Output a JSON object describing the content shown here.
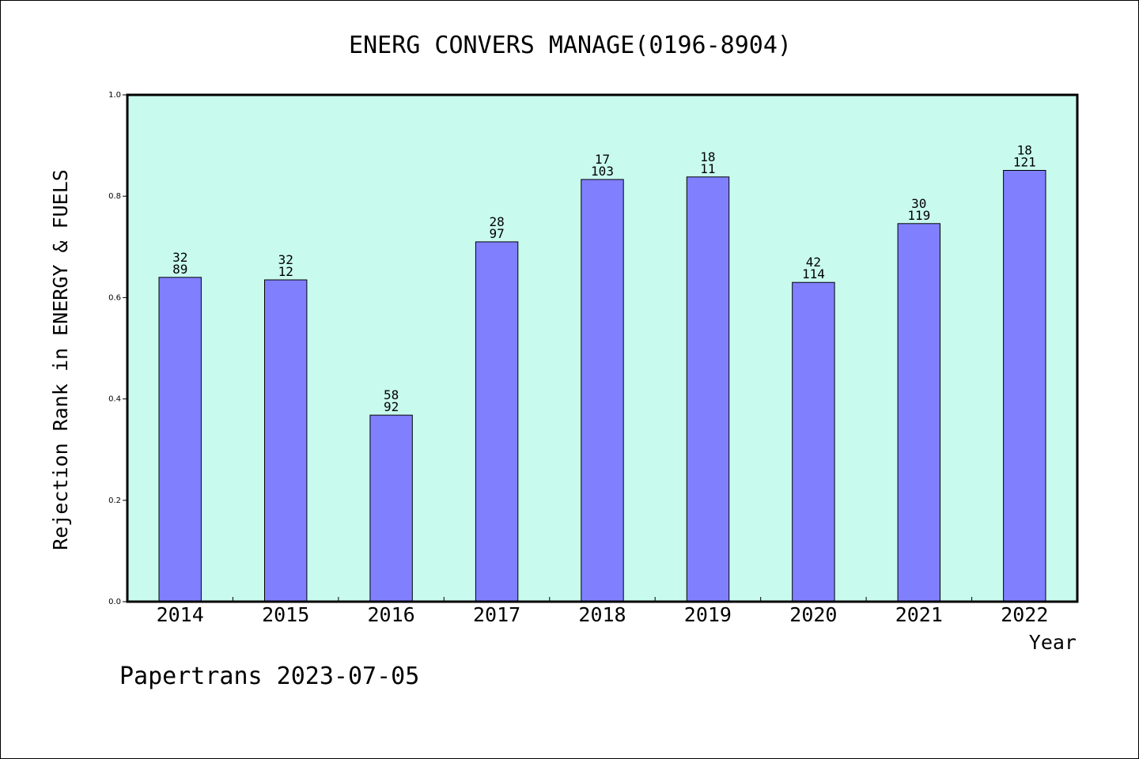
{
  "chart_data": {
    "type": "bar",
    "title": "ENERG CONVERS MANAGE(0196-8904)",
    "xlabel": "Year",
    "ylabel": "Rejection Rank in ENERGY & FUELS",
    "ylim": [
      0,
      1.0
    ],
    "yticks": [
      "0.0",
      "0.2",
      "0.4",
      "0.6",
      "0.8",
      "1.0"
    ],
    "grid": false,
    "categories": [
      "2014",
      "2015",
      "2016",
      "2017",
      "2018",
      "2019",
      "2020",
      "2021",
      "2022"
    ],
    "values": [
      0.64,
      0.635,
      0.368,
      0.71,
      0.833,
      0.838,
      0.63,
      0.746,
      0.851
    ],
    "labels_top": [
      "32",
      "32",
      "58",
      "28",
      "17",
      "18",
      "42",
      "30",
      "18"
    ],
    "labels_bottom": [
      "89",
      "12",
      "92",
      "97",
      "103",
      "11",
      "114",
      "119",
      "121"
    ],
    "colors": {
      "plot_background": "#c8faee",
      "bar_fill": "#8080ff",
      "bar_stroke": "#000000"
    }
  },
  "footer": {
    "text": "Papertrans 2023-07-05"
  }
}
